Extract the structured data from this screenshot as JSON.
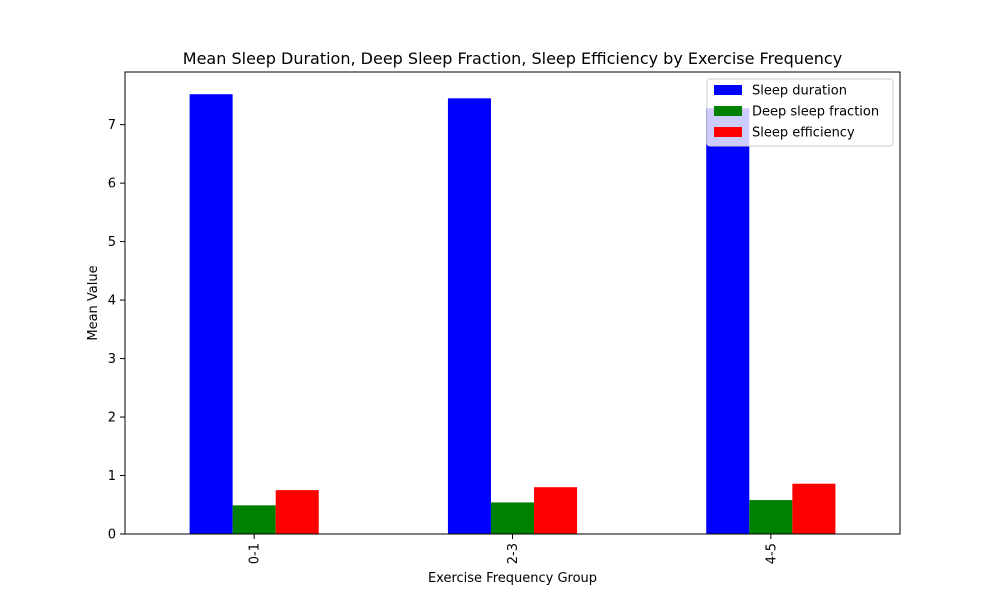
{
  "chart_data": {
    "type": "bar",
    "title": "Mean Sleep Duration, Deep Sleep Fraction, Sleep Efficiency by Exercise Frequency",
    "xlabel": "Exercise Frequency Group",
    "ylabel": "Mean Value",
    "categories": [
      "0-1",
      "2-3",
      "4-5"
    ],
    "series": [
      {
        "name": "Sleep duration",
        "color": "#0000ff",
        "values": [
          7.52,
          7.45,
          7.28
        ]
      },
      {
        "name": "Deep sleep fraction",
        "color": "#008000",
        "values": [
          0.49,
          0.54,
          0.58
        ]
      },
      {
        "name": "Sleep efficiency",
        "color": "#ff0000",
        "values": [
          0.75,
          0.8,
          0.86
        ]
      }
    ],
    "ylim": [
      0,
      7.9
    ],
    "yticks": [
      0,
      1,
      2,
      3,
      4,
      5,
      6,
      7
    ],
    "grid": false,
    "legend_position": "top-right"
  }
}
